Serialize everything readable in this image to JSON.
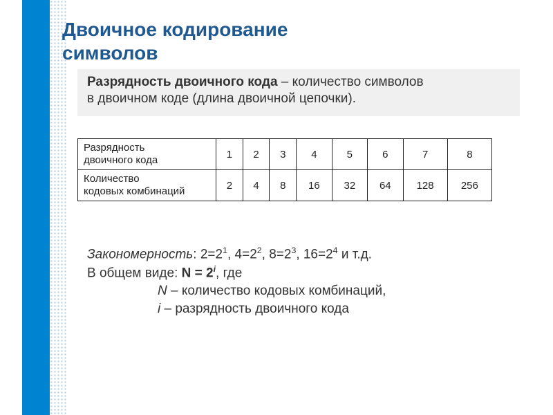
{
  "title": {
    "line1": "Двоичное кодирование",
    "line2": "символов"
  },
  "definition": {
    "term": "Разрядность двоичного кода",
    "dash": " – ",
    "text1": "количество символов",
    "text2": "в двоичном коде (длина двоичной цепочки)."
  },
  "table": {
    "row1_label_l1": "Разрядность",
    "row1_label_l2": "двоичного кода",
    "row2_label_l1": "Количество",
    "row2_label_l2": "кодовых комбинаций",
    "row1": [
      "1",
      "2",
      "3",
      "4",
      "5",
      "6",
      "7",
      "8"
    ],
    "row2": [
      "2",
      "4",
      "8",
      "16",
      "32",
      "64",
      "128",
      "256"
    ]
  },
  "pattern": {
    "label_zak": "Закономерность",
    "zak_text1": ":  2=2",
    "zak_s1": "1",
    "zak_c1": ",  4=2",
    "zak_s2": "2",
    "zak_c2": ",  8=2",
    "zak_s3": "3",
    "zak_c3": ",  16=2",
    "zak_s4": "4",
    "zak_tail": "  и т.д.",
    "line2_prefix": "В общем виде:  ",
    "formula_N": "N = 2",
    "formula_i": "i",
    "line2_suffix": ", где",
    "line3_i": "N",
    "line3_text": " – количество кодовых комбинаций,",
    "line4_i": "i",
    "line4_text": " – разрядность двоичного кода"
  },
  "styling": {
    "bg": "#ffffff",
    "accent_bar_color": "#0084d1",
    "dot_color": "#8eb4d0",
    "title_color": "#205890",
    "definition_bg": "#f0f0f0",
    "text_color": "#333333",
    "border_color": "#222222",
    "title_fontsize": 28,
    "body_fontsize": 19,
    "table_fontsize": 15
  }
}
